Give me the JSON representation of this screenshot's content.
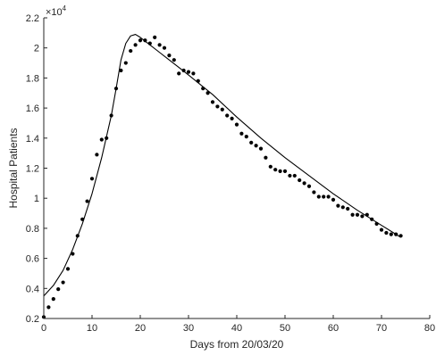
{
  "chart_data": {
    "type": "scatter",
    "xlabel": "Days from 20/03/20",
    "ylabel": "Hospital Patients",
    "xlim": [
      0,
      80
    ],
    "ylim": [
      2000,
      22000
    ],
    "x_ticks": [
      0,
      10,
      20,
      30,
      40,
      50,
      60,
      70,
      80
    ],
    "y_ticks": [
      2000,
      4000,
      6000,
      8000,
      10000,
      12000,
      14000,
      16000,
      18000,
      20000,
      22000
    ],
    "y_tick_labels": [
      "0.2",
      "0.4",
      "0.6",
      "0.8",
      "1",
      "1.2",
      "1.4",
      "1.6",
      "1.8",
      "2",
      "2.2"
    ],
    "y_multiplier": "×10",
    "y_multiplier_exponent": "4",
    "grid": false,
    "colors": {
      "axis": "#262626",
      "data": "#000000"
    },
    "series": [
      {
        "kind": "points",
        "x": [
          0,
          1,
          2,
          3,
          4,
          5,
          6,
          7,
          8,
          9,
          10,
          11,
          12,
          13,
          14,
          15,
          16,
          17,
          18,
          19,
          20,
          21,
          22,
          23,
          24,
          25,
          26,
          27,
          28,
          29,
          30,
          31,
          32,
          33,
          34,
          35,
          36,
          37,
          38,
          39,
          40,
          41,
          42,
          43,
          44,
          45,
          46,
          47,
          48,
          49,
          50,
          51,
          52,
          53,
          54,
          55,
          56,
          57,
          58,
          59,
          60,
          61,
          62,
          63,
          64,
          65,
          66,
          67,
          68,
          69,
          70,
          71,
          72,
          73,
          74
        ],
        "y": [
          2100,
          2750,
          3300,
          3950,
          4400,
          5300,
          6300,
          7500,
          8600,
          9800,
          11300,
          12900,
          13900,
          14000,
          15500,
          17300,
          18500,
          19000,
          19800,
          20200,
          20500,
          20500,
          20300,
          20700,
          20200,
          20000,
          19500,
          19200,
          18300,
          18500,
          18400,
          18300,
          17800,
          17300,
          17000,
          16400,
          16100,
          15900,
          15500,
          15300,
          14900,
          14300,
          14100,
          13700,
          13500,
          13300,
          12700,
          12100,
          11900,
          11800,
          11800,
          11500,
          11500,
          11200,
          11000,
          10800,
          10400,
          10100,
          10100,
          10100,
          9900,
          9500,
          9400,
          9300,
          8900,
          8900,
          8800,
          8900,
          8600,
          8300,
          7900,
          7700,
          7600,
          7600,
          7500
        ]
      },
      {
        "kind": "line",
        "x": [
          0,
          2,
          4,
          6,
          8,
          10,
          12,
          14,
          15,
          16,
          17,
          18,
          19,
          20,
          22,
          24,
          26,
          28,
          30,
          35,
          40,
          45,
          50,
          55,
          60,
          65,
          70,
          74
        ],
        "y": [
          3500,
          4200,
          5200,
          6600,
          8300,
          10300,
          12700,
          15500,
          17300,
          19200,
          20300,
          20800,
          20900,
          20700,
          20200,
          19700,
          19200,
          18700,
          18200,
          16900,
          15400,
          14000,
          12700,
          11500,
          10300,
          9200,
          8200,
          7400
        ]
      }
    ]
  }
}
